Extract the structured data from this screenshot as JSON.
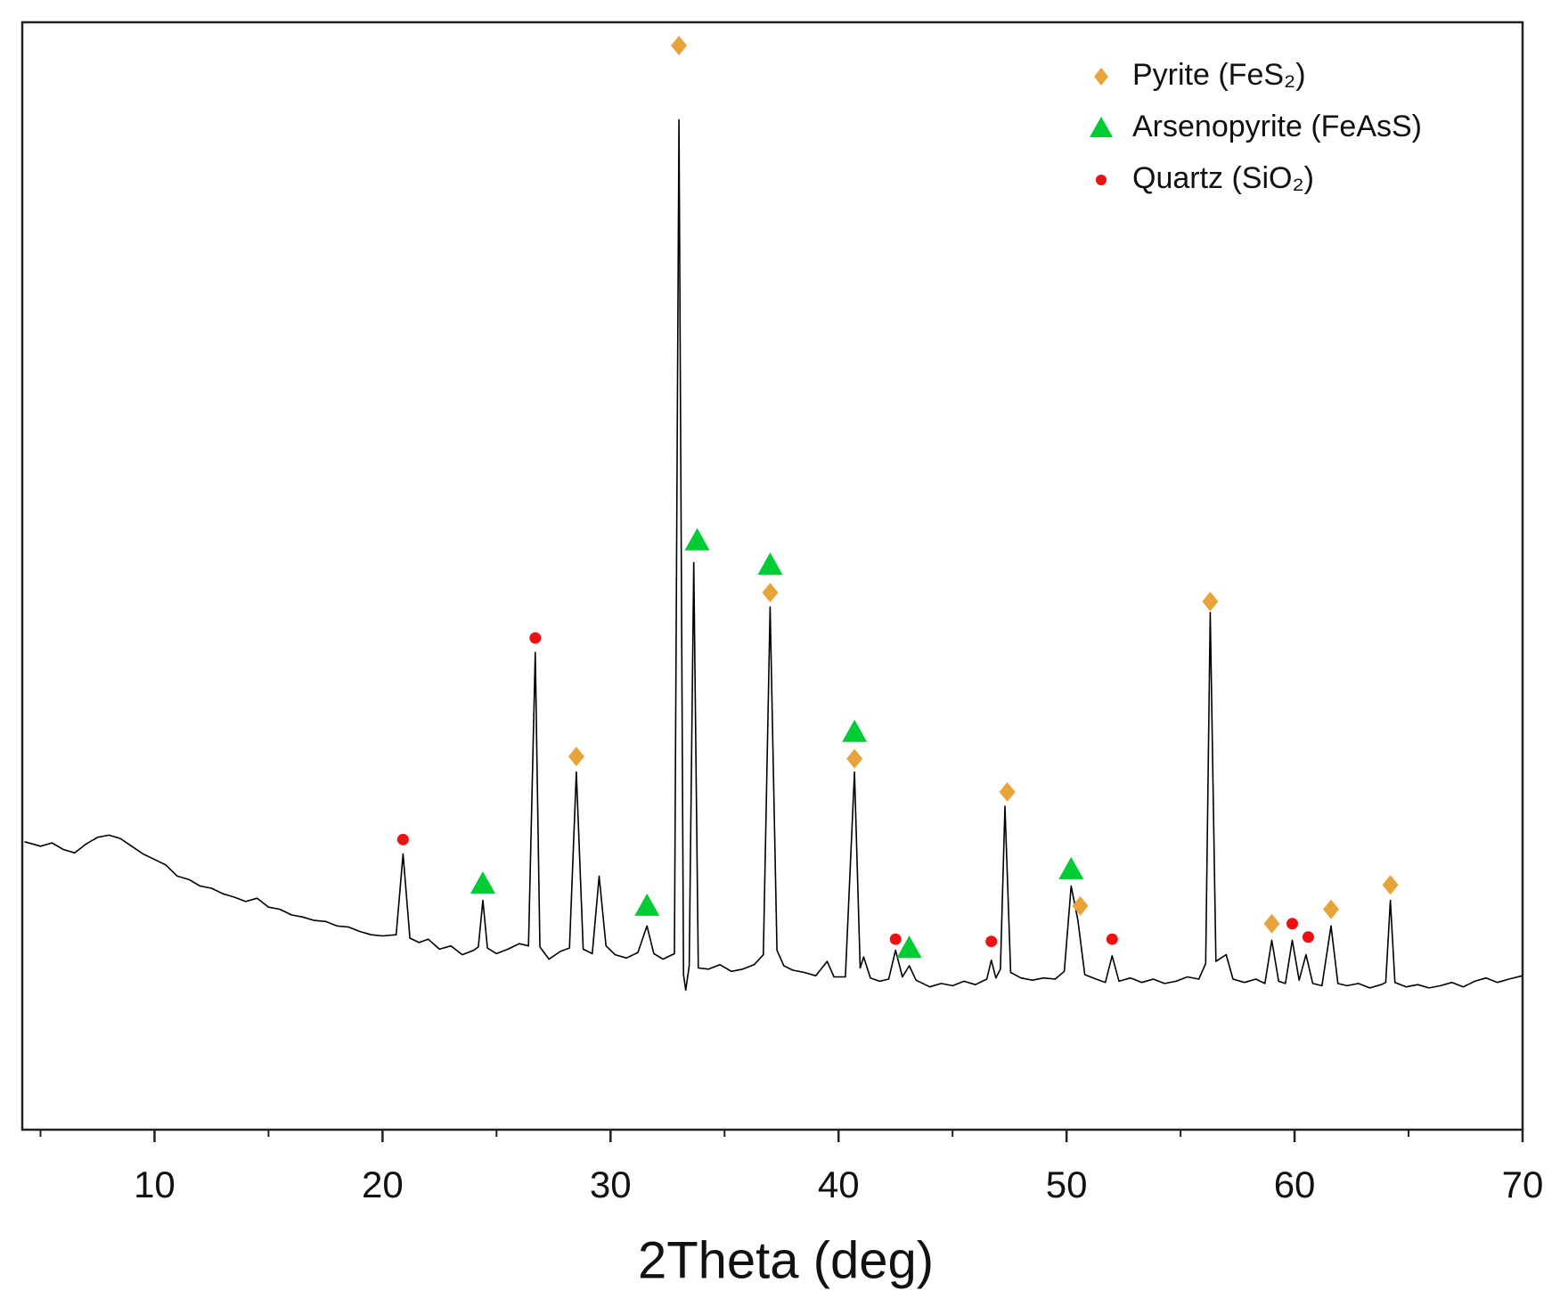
{
  "chart_data": {
    "type": "line",
    "xlabel": "2Theta (deg)",
    "xlim": [
      4.2,
      70
    ],
    "ylim": [
      0,
      100
    ],
    "xticks": [
      10,
      20,
      30,
      40,
      50,
      60,
      70
    ],
    "xminorticks": [
      5,
      15,
      25,
      35,
      45,
      55,
      65
    ],
    "color": "#000000",
    "legend": "upper right",
    "x": [
      4.3,
      5,
      5.5,
      6,
      6.5,
      7,
      7.5,
      8,
      8.5,
      9,
      9.5,
      10,
      10.5,
      11,
      11.5,
      12,
      12.5,
      13,
      13.5,
      14,
      14.5,
      15,
      15.5,
      16,
      16.5,
      17,
      17.5,
      18,
      18.5,
      19,
      19.5,
      20,
      20.6,
      20.9,
      21.2,
      21.6,
      22,
      22.5,
      23,
      23.5,
      24,
      24.2,
      24.4,
      24.6,
      25,
      25.5,
      26,
      26.4,
      26.7,
      26.9,
      27.3,
      27.8,
      28.2,
      28.5,
      28.8,
      29.2,
      29.5,
      29.8,
      30.2,
      30.7,
      31.2,
      31.6,
      31.9,
      32.3,
      32.8,
      33.0,
      33.2,
      33.3,
      33.45,
      33.65,
      33.85,
      34.3,
      34.8,
      35.3,
      35.8,
      36.3,
      36.7,
      37.0,
      37.3,
      37.6,
      38,
      38.5,
      39,
      39.5,
      39.8,
      40.3,
      40.7,
      40.95,
      41.1,
      41.4,
      41.8,
      42.2,
      42.5,
      42.8,
      43.1,
      43.4,
      44,
      44.5,
      45,
      45.5,
      46,
      46.5,
      46.7,
      46.9,
      47.1,
      47.3,
      47.55,
      48,
      48.5,
      49,
      49.5,
      49.9,
      50.2,
      50.5,
      50.8,
      51.3,
      51.7,
      52.0,
      52.3,
      52.8,
      53.3,
      53.8,
      54.3,
      54.8,
      55.3,
      55.8,
      56.1,
      56.3,
      56.55,
      57.0,
      57.3,
      57.8,
      58.3,
      58.7,
      59.0,
      59.3,
      59.6,
      59.9,
      60.2,
      60.5,
      60.8,
      61.2,
      61.6,
      61.9,
      62.3,
      62.8,
      63.3,
      63.8,
      64.0,
      64.2,
      64.4,
      64.9,
      65.4,
      65.9,
      66.4,
      66.9,
      67.4,
      67.9,
      68.4,
      68.9,
      69.4,
      70
    ],
    "values": [
      26.0,
      25.6,
      25.9,
      25.3,
      25.0,
      25.8,
      26.4,
      26.6,
      26.3,
      25.6,
      24.9,
      24.4,
      23.9,
      22.9,
      22.6,
      22.0,
      21.8,
      21.3,
      21.0,
      20.6,
      20.9,
      20.1,
      19.9,
      19.4,
      19.2,
      18.9,
      18.8,
      18.4,
      18.3,
      17.9,
      17.6,
      17.5,
      17.6,
      24.9,
      17.3,
      16.9,
      17.2,
      16.3,
      16.6,
      15.8,
      16.2,
      16.5,
      20.7,
      16.4,
      15.9,
      16.3,
      16.8,
      16.6,
      43.1,
      16.5,
      15.4,
      16.1,
      16.4,
      32.3,
      16.3,
      15.9,
      22.9,
      16.6,
      15.8,
      15.5,
      16.0,
      18.4,
      15.9,
      15.4,
      15.9,
      91.2,
      14.0,
      12.6,
      14.8,
      51.2,
      14.6,
      14.5,
      14.9,
      14.3,
      14.5,
      14.9,
      15.8,
      47.2,
      16.2,
      14.8,
      14.4,
      14.2,
      13.9,
      15.2,
      13.8,
      13.8,
      32.3,
      14.6,
      15.6,
      13.7,
      13.4,
      13.6,
      16.2,
      13.8,
      14.8,
      13.5,
      12.9,
      13.2,
      13.0,
      13.4,
      13.1,
      13.6,
      15.3,
      13.7,
      14.5,
      29.2,
      14.2,
      13.7,
      13.5,
      13.7,
      13.6,
      14.3,
      22.0,
      18.9,
      14.0,
      13.6,
      13.3,
      15.7,
      13.4,
      13.7,
      13.3,
      13.6,
      13.2,
      13.4,
      13.8,
      13.6,
      15.0,
      46.7,
      15.2,
      15.8,
      13.6,
      13.3,
      13.6,
      13.2,
      17.1,
      13.4,
      13.2,
      17.1,
      13.5,
      15.8,
      13.2,
      13.0,
      18.4,
      13.2,
      13.0,
      13.2,
      12.8,
      13.1,
      13.3,
      20.7,
      13.3,
      12.9,
      13.1,
      12.8,
      13.0,
      13.3,
      12.9,
      13.4,
      13.7,
      13.3,
      13.6,
      13.9
    ],
    "markers": [
      {
        "name": "Pyrite (FeS₂)",
        "color": "#E8A43A",
        "shape": "diamond",
        "x": [
          33.0,
          37.0,
          56.3,
          28.5,
          40.7,
          47.4,
          50.6,
          59.0,
          61.6,
          64.2
        ],
        "values": [
          97.9,
          48.5,
          47.7,
          33.7,
          33.5,
          30.5,
          20.2,
          18.6,
          19.9,
          22.1
        ]
      },
      {
        "name": "Arsenopyrite (FeAsS)",
        "color": "#00CC33",
        "shape": "triangle",
        "x": [
          33.8,
          37.0,
          40.7,
          24.4,
          31.6,
          43.1,
          50.2
        ],
        "values": [
          53.2,
          51.0,
          35.9,
          22.2,
          20.2,
          16.4,
          23.5
        ]
      },
      {
        "name": "Quartz (SiO₂)",
        "color": "#EE1111",
        "shape": "circle",
        "x": [
          26.7,
          20.9,
          42.5,
          46.7,
          52.0,
          59.9,
          60.6
        ],
        "values": [
          44.4,
          26.2,
          17.2,
          17.0,
          17.2,
          18.6,
          17.4
        ]
      }
    ]
  }
}
